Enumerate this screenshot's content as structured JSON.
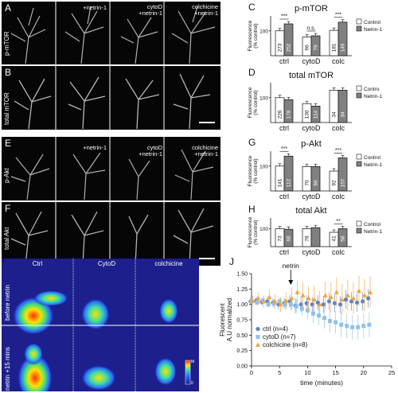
{
  "panels": {
    "A": {
      "label": "A",
      "row_label": "p-mTOR",
      "columns": [
        "",
        "+netrin-1",
        "cytoD\n+netrin-1",
        "colchicine\n+netrin-1"
      ]
    },
    "B": {
      "label": "B",
      "row_label": "total mTOR"
    },
    "E": {
      "label": "E",
      "row_label": "p-Akt",
      "columns": [
        "",
        "+netrin-1",
        "cytoD\n+netrin-1",
        "colchicine\n+netrin-1"
      ]
    },
    "F": {
      "label": "F",
      "row_label": "total Akt"
    },
    "I": {
      "label": "I",
      "columns": [
        "Ctrl",
        "CytoD",
        "colchicine"
      ],
      "rows": [
        "before netrin",
        "netrin +15 mins"
      ],
      "colorbar_top": "M",
      "colorbar_bottom": "0"
    },
    "C": {
      "label": "C"
    },
    "D": {
      "label": "D"
    },
    "G": {
      "label": "G"
    },
    "H": {
      "label": "H"
    },
    "J": {
      "label": "J"
    }
  },
  "chart_data": [
    {
      "id": "C",
      "type": "bar",
      "title": "p-mTOR",
      "ylabel": "Fluorescence\n(% control)",
      "categories": [
        "ctrl",
        "cytoD",
        "colc"
      ],
      "yticks": [
        100
      ],
      "ylim": [
        0,
        160
      ],
      "series": [
        {
          "name": "Control",
          "color": "#ffffff",
          "values": [
            100,
            75,
            102
          ],
          "n": [
            "273",
            "96",
            "181"
          ]
        },
        {
          "name": "Netrin-1",
          "color": "#808080",
          "values": [
            128,
            80,
            135
          ],
          "n": [
            "252",
            "79",
            "149"
          ]
        }
      ],
      "significance": [
        "***",
        "n.s.",
        "***"
      ],
      "legend": "right"
    },
    {
      "id": "D",
      "type": "bar",
      "title": "total mTOR",
      "ylabel": "Fluorescence\n(% control)",
      "categories": [
        "ctrl",
        "cytoD",
        "colc"
      ],
      "yticks": [
        100
      ],
      "ylim": [
        0,
        160
      ],
      "series": [
        {
          "name": "Contro",
          "color": "#ffffff",
          "values": [
            100,
            76,
            130
          ],
          "n": [
            "226",
            "130",
            "34"
          ]
        },
        {
          "name": "Netrin-1",
          "color": "#808080",
          "values": [
            92,
            66,
            130
          ],
          "n": [
            "178",
            "114",
            "34"
          ]
        }
      ],
      "significance": [
        "",
        "",
        ""
      ],
      "legend": "right"
    },
    {
      "id": "G",
      "type": "bar",
      "title": "p-Akt",
      "ylabel": "Fluorescence\n(% control)",
      "categories": [
        "ctrl",
        "cytoD",
        "colc"
      ],
      "yticks": [
        100
      ],
      "ylim": [
        0,
        160
      ],
      "series": [
        {
          "name": "Control",
          "color": "#ffffff",
          "values": [
            100,
            98,
            80
          ],
          "n": [
            "141",
            "70",
            "92"
          ]
        },
        {
          "name": "Netrin-1",
          "color": "#808080",
          "values": [
            140,
            98,
            133
          ],
          "n": [
            "112",
            "66",
            "157"
          ]
        }
      ],
      "significance": [
        "***",
        "",
        "***"
      ],
      "legend": "right"
    },
    {
      "id": "H",
      "type": "bar",
      "title": "total Akt",
      "ylabel": "Fluorescence\n(% control)",
      "categories": [
        "ctrl",
        "cytoD",
        "colc"
      ],
      "yticks": [
        100
      ],
      "ylim": [
        0,
        160
      ],
      "series": [
        {
          "name": "Control",
          "color": "#ffffff",
          "values": [
            100,
            100,
            80
          ],
          "n": [
            "73",
            "78",
            "41"
          ]
        },
        {
          "name": "Netrin-1",
          "color": "#808080",
          "values": [
            97,
            106,
            100
          ],
          "n": [
            "66",
            "",
            "58"
          ]
        }
      ],
      "significance": [
        "",
        "",
        "**"
      ],
      "legend": "right"
    },
    {
      "id": "J",
      "type": "scatter",
      "ylabel": "Fluorescent\nA.U normalized",
      "xlabel": "time (minutes)",
      "xlim": [
        0,
        25
      ],
      "ylim": [
        0,
        1.5
      ],
      "xticks": [
        0,
        5,
        10,
        15,
        20,
        25
      ],
      "yticks": [
        0,
        0.25,
        0.5,
        0.75,
        1.0,
        1.25,
        1.5
      ],
      "annotation": {
        "text": "netrin",
        "x": 7
      },
      "legend": "bottom-left",
      "series": [
        {
          "name": "ctrl (n=4)",
          "color": "#5e84c6",
          "marker": "circle",
          "x": [
            0,
            1,
            2,
            3,
            4,
            5,
            6,
            7,
            8,
            9,
            10,
            11,
            12,
            13,
            14,
            15,
            16,
            17,
            18,
            19,
            20,
            21
          ],
          "y": [
            1.05,
            1.06,
            1.04,
            1.05,
            1.03,
            1.0,
            1.02,
            1.05,
            0.98,
            1.0,
            1.02,
            1.0,
            1.03,
            1.0,
            1.05,
            1.02,
            1.0,
            1.08,
            1.05,
            1.03,
            1.05,
            1.1
          ],
          "err": [
            0.06,
            0.06,
            0.06,
            0.06,
            0.07,
            0.08,
            0.08,
            0.1,
            0.12,
            0.12,
            0.13,
            0.12,
            0.12,
            0.14,
            0.14,
            0.14,
            0.14,
            0.15,
            0.15,
            0.15,
            0.15,
            0.15
          ]
        },
        {
          "name": "cytoD (n=7)",
          "color": "#8ec2ee",
          "marker": "square",
          "x": [
            0,
            1,
            2,
            3,
            4,
            5,
            6,
            7,
            8,
            9,
            10,
            11,
            12,
            13,
            14,
            15,
            16,
            17,
            18,
            19,
            20,
            21
          ],
          "y": [
            1.05,
            1.03,
            1.06,
            1.0,
            1.02,
            1.05,
            1.0,
            1.0,
            0.97,
            0.93,
            0.9,
            0.85,
            0.82,
            0.78,
            0.73,
            0.71,
            0.67,
            0.65,
            0.63,
            0.63,
            0.65,
            0.67
          ],
          "err": [
            0.05,
            0.05,
            0.06,
            0.06,
            0.06,
            0.07,
            0.08,
            0.1,
            0.11,
            0.12,
            0.14,
            0.15,
            0.16,
            0.17,
            0.18,
            0.18,
            0.2,
            0.2,
            0.2,
            0.2,
            0.2,
            0.2
          ]
        },
        {
          "name": "colchicine (n=8)",
          "color": "#f2a23a",
          "marker": "triangle",
          "x": [
            0,
            1,
            2,
            3,
            4,
            5,
            6,
            7,
            8,
            9,
            10,
            11,
            12,
            13,
            14,
            15,
            16,
            17,
            18,
            19,
            20,
            21
          ],
          "y": [
            1.06,
            1.1,
            1.05,
            1.12,
            1.05,
            1.0,
            1.06,
            1.1,
            1.2,
            1.15,
            1.1,
            1.08,
            1.0,
            1.15,
            1.12,
            1.2,
            1.08,
            1.15,
            1.1,
            1.22,
            1.15,
            1.2
          ],
          "err": [
            0.08,
            0.1,
            0.1,
            0.12,
            0.12,
            0.12,
            0.14,
            0.18,
            0.2,
            0.2,
            0.2,
            0.22,
            0.22,
            0.22,
            0.24,
            0.24,
            0.25,
            0.25,
            0.25,
            0.25,
            0.26,
            0.26
          ]
        }
      ]
    }
  ]
}
